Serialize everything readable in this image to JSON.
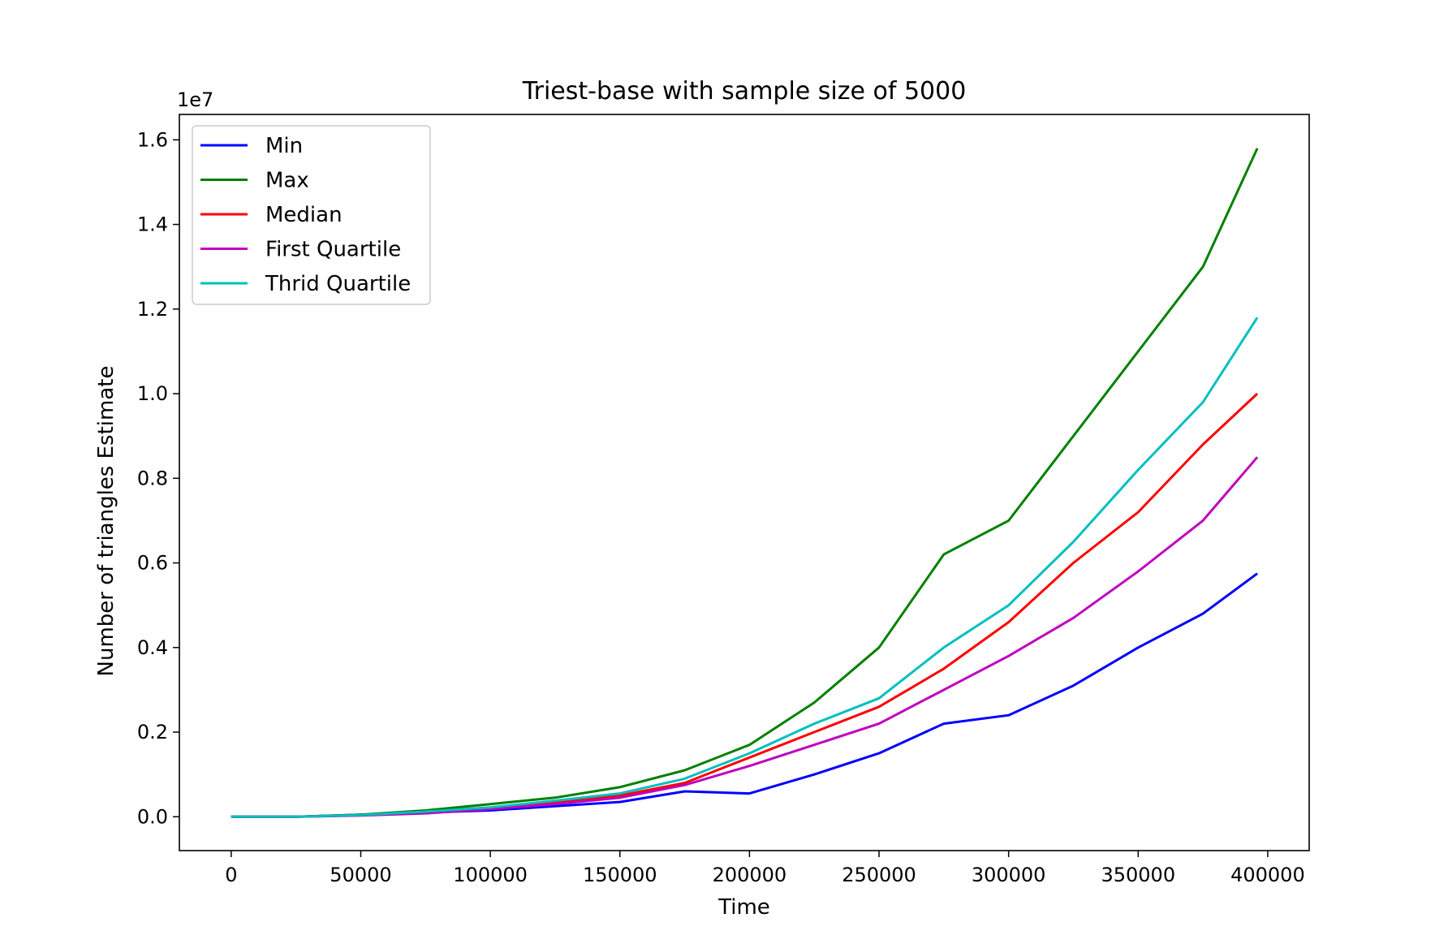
{
  "chart_data": {
    "type": "line",
    "title": "Triest-base with sample size of 5000",
    "xlabel": "Time",
    "ylabel": "Number of triangles Estimate",
    "y_offset_label": "1e7",
    "xlim": [
      -20000,
      416000
    ],
    "ylim": [
      -0.08,
      1.66
    ],
    "y_scale_note": "values in units of 1e7",
    "x_ticks": [
      0,
      50000,
      100000,
      150000,
      200000,
      250000,
      300000,
      350000,
      400000
    ],
    "x_tick_labels": [
      "0",
      "50000",
      "100000",
      "150000",
      "200000",
      "250000",
      "300000",
      "350000",
      "400000"
    ],
    "y_ticks": [
      0.0,
      0.2,
      0.4,
      0.6,
      0.8,
      1.0,
      1.2,
      1.4,
      1.6
    ],
    "y_tick_labels": [
      "0.0",
      "0.2",
      "0.4",
      "0.6",
      "0.8",
      "1.0",
      "1.2",
      "1.4",
      "1.6"
    ],
    "legend_position": "upper-left",
    "grid": false,
    "x": [
      0,
      25000,
      50000,
      75000,
      100000,
      125000,
      150000,
      175000,
      200000,
      225000,
      250000,
      275000,
      300000,
      325000,
      350000,
      375000,
      396000
    ],
    "series": [
      {
        "name": "Min",
        "color": "#0000ff",
        "values": [
          0.0,
          0.0,
          0.005,
          0.01,
          0.015,
          0.025,
          0.035,
          0.06,
          0.055,
          0.1,
          0.15,
          0.22,
          0.24,
          0.31,
          0.4,
          0.48,
          0.575
        ]
      },
      {
        "name": "Max",
        "color": "#008000",
        "values": [
          0.0,
          0.0,
          0.005,
          0.015,
          0.03,
          0.045,
          0.07,
          0.11,
          0.17,
          0.27,
          0.4,
          0.62,
          0.7,
          0.9,
          1.1,
          1.3,
          1.58
        ]
      },
      {
        "name": "Median",
        "color": "#ff0000",
        "values": [
          0.0,
          0.0,
          0.004,
          0.01,
          0.02,
          0.035,
          0.05,
          0.08,
          0.14,
          0.2,
          0.26,
          0.35,
          0.46,
          0.6,
          0.72,
          0.88,
          1.0
        ]
      },
      {
        "name": "First Quartile",
        "color": "#bf00bf",
        "values": [
          0.0,
          0.0,
          0.003,
          0.008,
          0.018,
          0.03,
          0.045,
          0.075,
          0.12,
          0.17,
          0.22,
          0.3,
          0.38,
          0.47,
          0.58,
          0.7,
          0.85
        ]
      },
      {
        "name": "Thrid Quartile",
        "color": "#00bfbf",
        "values": [
          0.0,
          0.0,
          0.004,
          0.012,
          0.022,
          0.038,
          0.055,
          0.09,
          0.15,
          0.22,
          0.28,
          0.4,
          0.5,
          0.65,
          0.82,
          0.98,
          1.18
        ]
      }
    ]
  }
}
